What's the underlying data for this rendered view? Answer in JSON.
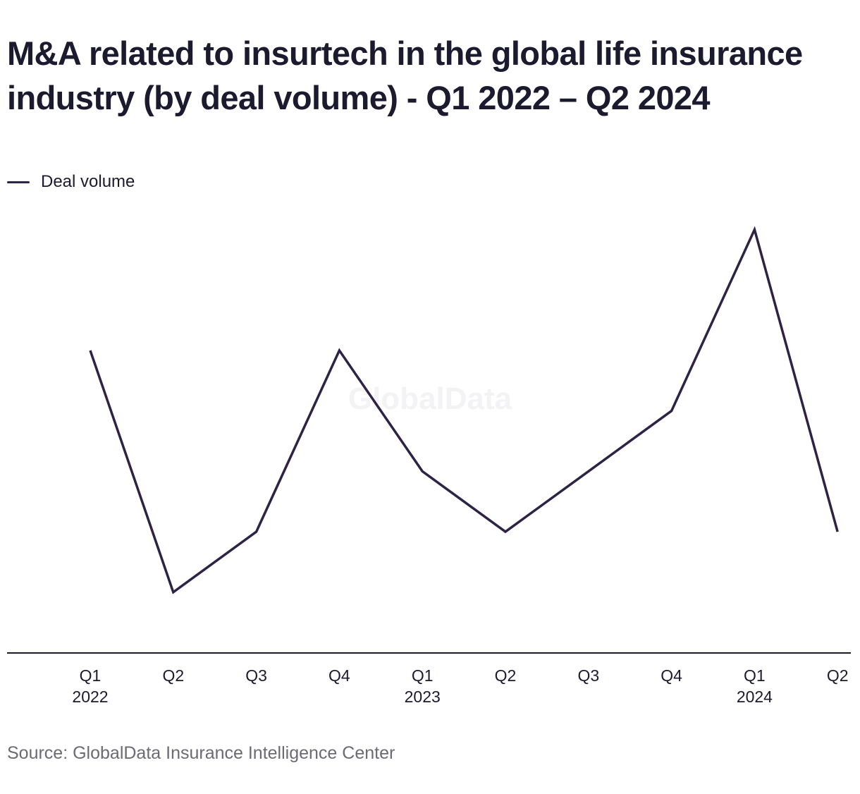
{
  "title": "M&A related to insurtech in the global life insurance industry (by deal volume) - Q1 2022 – Q2 2024",
  "legend": {
    "label": "Deal volume"
  },
  "watermark": "GlobalData",
  "source": "Source: GlobalData Insurance Intelligence Center",
  "colors": {
    "series": "#2e2245",
    "axis": "#1c1a2e",
    "text": "#1c1a2e",
    "source_text": "#6b6b73"
  },
  "chart_data": {
    "type": "line",
    "title": "M&A related to insurtech in the global life insurance industry (by deal volume) - Q1 2022 – Q2 2024",
    "xlabel": "",
    "ylabel": "",
    "categories": [
      "Q1 2022",
      "Q2 2022",
      "Q3 2022",
      "Q4 2022",
      "Q1 2023",
      "Q2 2023",
      "Q3 2023",
      "Q4 2023",
      "Q1 2024",
      "Q2 2024"
    ],
    "tick_labels": [
      {
        "quarter": "Q1",
        "year": "2022"
      },
      {
        "quarter": "Q2",
        "year": ""
      },
      {
        "quarter": "Q3",
        "year": ""
      },
      {
        "quarter": "Q4",
        "year": ""
      },
      {
        "quarter": "Q1",
        "year": "2023"
      },
      {
        "quarter": "Q2",
        "year": ""
      },
      {
        "quarter": "Q3",
        "year": ""
      },
      {
        "quarter": "Q4",
        "year": ""
      },
      {
        "quarter": "Q1",
        "year": "2024"
      },
      {
        "quarter": "Q2",
        "year": ""
      }
    ],
    "series": [
      {
        "name": "Deal volume",
        "values": [
          5,
          1,
          2,
          5,
          3,
          2,
          3,
          4,
          7,
          2
        ]
      }
    ],
    "ylim": [
      0,
      8
    ],
    "grid": false,
    "y_axis_labels_shown": false,
    "legend_position": "top-left"
  }
}
